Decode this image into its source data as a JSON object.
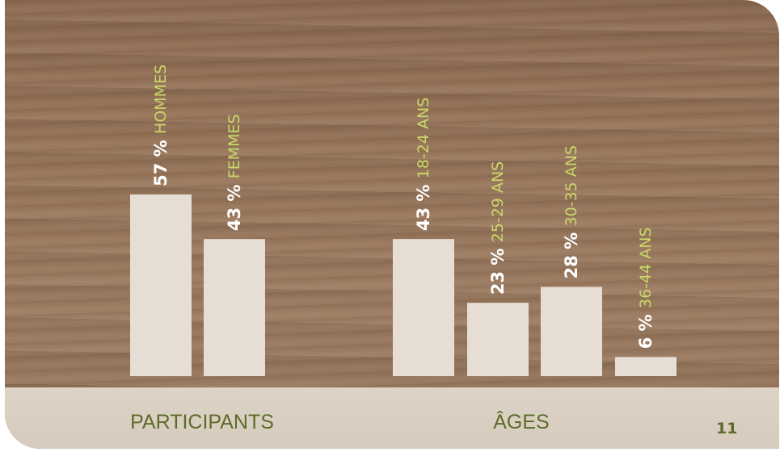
{
  "colors": {
    "bar": "#e6ddd4",
    "value_text": "#ffffff",
    "label_text": "#c9d86a",
    "category_text": "#5d6b2a"
  },
  "page_number": "11",
  "chart_data": {
    "type": "bar",
    "ylim": [
      0,
      100
    ],
    "groups": [
      {
        "category": "PARTICIPANTS",
        "bars": [
          {
            "value": 57,
            "value_label": "57 %",
            "label": "HOMMES"
          },
          {
            "value": 43,
            "value_label": "43 %",
            "label": "FEMMES"
          }
        ]
      },
      {
        "category": "ÂGES",
        "bars": [
          {
            "value": 43,
            "value_label": "43 %",
            "label": "18-24 ANS"
          },
          {
            "value": 23,
            "value_label": "23 %",
            "label": "25-29 ANS"
          },
          {
            "value": 28,
            "value_label": "28 %",
            "label": "30-35 ANS"
          },
          {
            "value": 6,
            "value_label": "6 %",
            "label": "36-44 ANS"
          }
        ]
      }
    ]
  }
}
